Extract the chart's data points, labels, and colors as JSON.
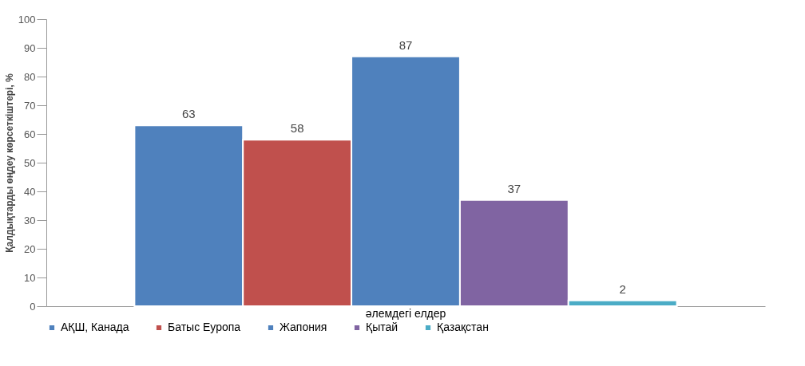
{
  "chart_data": {
    "type": "bar",
    "ylabel": "Қалдықтарды өңдеу көрсеткіштері, %",
    "categories": [
      "әлемдегі елдер"
    ],
    "series": [
      {
        "name": "АҚШ, Канада",
        "color": "#4f81bd",
        "values": [
          63
        ]
      },
      {
        "name": "Батыс Еуропа",
        "color": "#c0504d",
        "values": [
          58
        ]
      },
      {
        "name": "Жапония",
        "color": "#4f81bd",
        "values": [
          87
        ]
      },
      {
        "name": "Қытай",
        "color": "#8064a2",
        "values": [
          37
        ]
      },
      {
        "name": "Қазақстан",
        "color": "#4bacc6",
        "values": [
          2
        ]
      }
    ],
    "ylim": [
      0,
      100
    ],
    "yticks": [
      0,
      10,
      20,
      30,
      40,
      50,
      60,
      70,
      80,
      90,
      100
    ],
    "data_labels": true,
    "legend": "bottom",
    "grid": false
  }
}
